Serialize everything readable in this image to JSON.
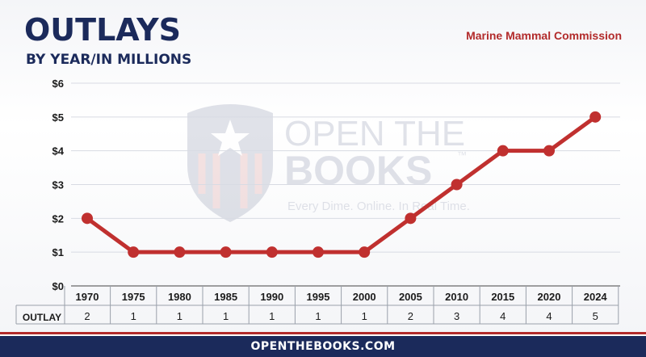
{
  "header": {
    "title": "OUTLAYS",
    "subtitle": "BY YEAR/IN MILLIONS",
    "agency": "Marine Mammal Commission"
  },
  "watermark": {
    "line1": "OPEN THE",
    "line2": "BOOKS",
    "trademark": "™",
    "tagline": "Every Dime. Online. In Real Time."
  },
  "table": {
    "row_label": "OUTLAY"
  },
  "footer": {
    "text": "OPENTHEBOOKS.COM"
  },
  "colors": {
    "line": "#c0302f",
    "navy": "#1b2a5b",
    "red_stripe": "#b22b2b",
    "grid": "#d8dbe3"
  },
  "chart_data": {
    "type": "line",
    "title": "OUTLAYS",
    "subtitle": "BY YEAR/IN MILLIONS",
    "categories": [
      "1970",
      "1975",
      "1980",
      "1985",
      "1990",
      "1995",
      "2000",
      "2005",
      "2010",
      "2015",
      "2020",
      "2024"
    ],
    "values": [
      2,
      1,
      1,
      1,
      1,
      1,
      1,
      2,
      3,
      4,
      4,
      5
    ],
    "y_ticks": [
      "$0",
      "$1",
      "$2",
      "$3",
      "$4",
      "$5",
      "$6"
    ],
    "ylim": [
      0,
      6
    ],
    "grid": true,
    "legend": "none"
  }
}
